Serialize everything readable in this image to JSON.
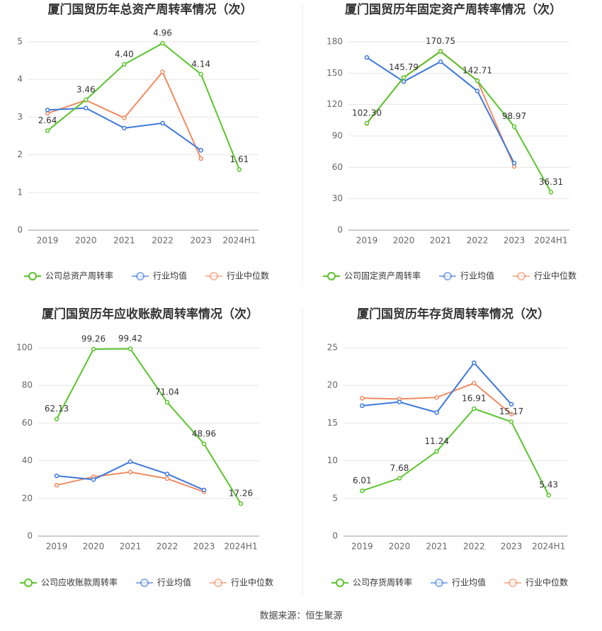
{
  "chart_data": [
    {
      "type": "line",
      "title": "厦门国贸历年总资产周转率情况（次）",
      "categories": [
        "2019",
        "2020",
        "2021",
        "2022",
        "2023",
        "2024H1"
      ],
      "ylim": [
        0,
        5
      ],
      "yticks": [
        0,
        1,
        2,
        3,
        4,
        5
      ],
      "grid": true,
      "legend": "bottom",
      "series": [
        {
          "name": "公司总资产周转率",
          "color": "#5ac42d",
          "values": [
            2.64,
            3.46,
            4.4,
            4.96,
            4.14,
            1.61
          ],
          "value_labels": [
            "2.64",
            "3.46",
            "4.40",
            "4.96",
            "4.14",
            "1.61"
          ]
        },
        {
          "name": "行业均值",
          "color": "#3d78dc",
          "values": [
            3.19,
            3.24,
            2.71,
            2.84,
            2.12,
            null
          ]
        },
        {
          "name": "行业中位数",
          "color": "#f28b62",
          "values": [
            3.1,
            3.45,
            2.98,
            4.2,
            1.9,
            null
          ]
        }
      ]
    },
    {
      "type": "line",
      "title": "厦门国贸历年固定资产周转率情况（次）",
      "categories": [
        "2019",
        "2020",
        "2021",
        "2022",
        "2023",
        "2024H1"
      ],
      "ylim": [
        0,
        180
      ],
      "yticks": [
        0,
        30,
        60,
        90,
        120,
        150,
        180
      ],
      "grid": true,
      "legend": "bottom",
      "series": [
        {
          "name": "公司固定资产周转率",
          "color": "#5ac42d",
          "values": [
            102.3,
            145.79,
            170.75,
            142.71,
            98.97,
            36.31
          ],
          "value_labels": [
            "102.30",
            "145.79",
            "170.75",
            "142.71",
            "98.97",
            "36.31"
          ]
        },
        {
          "name": "行业均值",
          "color": "#3d78dc",
          "values": [
            165,
            142,
            161,
            133,
            64,
            null
          ]
        },
        {
          "name": "行业中位数",
          "color": "#f28b62",
          "values": [
            102,
            146,
            171,
            143,
            61,
            null
          ]
        }
      ]
    },
    {
      "type": "line",
      "title": "厦门国贸历年应收账款周转率情况（次）",
      "categories": [
        "2019",
        "2020",
        "2021",
        "2022",
        "2023",
        "2024H1"
      ],
      "ylim": [
        0,
        100
      ],
      "yticks": [
        0,
        20,
        40,
        60,
        80,
        100
      ],
      "grid": true,
      "legend": "bottom",
      "series": [
        {
          "name": "公司应收账款周转率",
          "color": "#5ac42d",
          "values": [
            62.13,
            99.26,
            99.42,
            71.04,
            48.96,
            17.26
          ],
          "value_labels": [
            "62.13",
            "99.26",
            "99.42",
            "71.04",
            "48.96",
            "17.26"
          ]
        },
        {
          "name": "行业均值",
          "color": "#3d78dc",
          "values": [
            32,
            30,
            39.5,
            33,
            24.5,
            null
          ]
        },
        {
          "name": "行业中位数",
          "color": "#f28b62",
          "values": [
            27,
            31.5,
            34,
            30.5,
            23.5,
            null
          ]
        }
      ]
    },
    {
      "type": "line",
      "title": "厦门国贸历年存货周转率情况（次）",
      "categories": [
        "2019",
        "2020",
        "2021",
        "2022",
        "2023",
        "2024H1"
      ],
      "ylim": [
        0,
        25
      ],
      "yticks": [
        0,
        5,
        10,
        15,
        20,
        25
      ],
      "grid": true,
      "legend": "bottom",
      "series": [
        {
          "name": "公司存货周转率",
          "color": "#5ac42d",
          "values": [
            6.01,
            7.68,
            11.24,
            16.91,
            15.17,
            5.43
          ],
          "value_labels": [
            "6.01",
            "7.68",
            "11.24",
            "16.91",
            "15.17",
            "5.43"
          ]
        },
        {
          "name": "行业均值",
          "color": "#3d78dc",
          "values": [
            17.3,
            17.8,
            16.4,
            23.0,
            17.5,
            null
          ]
        },
        {
          "name": "行业中位数",
          "color": "#f28b62",
          "values": [
            18.3,
            18.2,
            18.4,
            20.3,
            16.2,
            null
          ]
        }
      ]
    }
  ],
  "source": "数据来源：恒生聚源"
}
